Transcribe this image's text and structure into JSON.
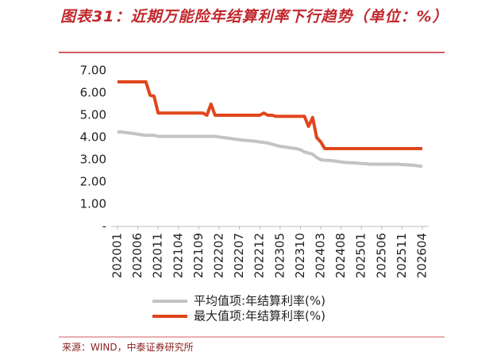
{
  "chart_data": {
    "type": "line",
    "title": "图表31：近期万能险年结算利率下行趋势（单位：%）",
    "source": "来源：WIND，中泰证券研究所",
    "categories": [
      "202001",
      null,
      null,
      null,
      null,
      "202006",
      null,
      null,
      null,
      null,
      "202011",
      null,
      null,
      null,
      null,
      "202104",
      null,
      null,
      null,
      null,
      "202109",
      null,
      null,
      null,
      null,
      "202202",
      null,
      null,
      null,
      null,
      "202207",
      null,
      null,
      null,
      null,
      "202212",
      null,
      null,
      null,
      null,
      "202305",
      null,
      null,
      null,
      null,
      "202310",
      null,
      null,
      null,
      null,
      "202403",
      null,
      null,
      null,
      null,
      "202408",
      null,
      null,
      null,
      null,
      "202501",
      null,
      null,
      null,
      null,
      "202506",
      null,
      null,
      null,
      null,
      "202511",
      null,
      null,
      null,
      null,
      "202604"
    ],
    "series": [
      {
        "name": "平均值项:年结算利率(%)",
        "color": "#c3c3c3",
        "values": [
          4.25,
          4.25,
          4.22,
          4.2,
          4.18,
          4.15,
          4.12,
          4.1,
          4.1,
          4.1,
          4.05,
          4.05,
          4.05,
          4.05,
          4.05,
          4.05,
          4.05,
          4.05,
          4.05,
          4.05,
          4.05,
          4.05,
          4.05,
          4.05,
          4.05,
          4.02,
          4.0,
          3.98,
          3.95,
          3.92,
          3.9,
          3.88,
          3.86,
          3.85,
          3.83,
          3.8,
          3.78,
          3.75,
          3.7,
          3.65,
          3.6,
          3.58,
          3.55,
          3.52,
          3.5,
          3.45,
          3.35,
          3.3,
          3.25,
          3.1,
          3.0,
          2.98,
          2.97,
          2.95,
          2.93,
          2.9,
          2.88,
          2.87,
          2.86,
          2.85,
          2.83,
          2.82,
          2.8,
          2.8,
          2.8,
          2.8,
          2.8,
          2.8,
          2.8,
          2.8,
          2.78,
          2.78,
          2.76,
          2.75,
          2.72,
          2.7
        ]
      },
      {
        "name": "最大值项:年结算利率(%)",
        "color": "#e0461c",
        "values": [
          6.5,
          6.5,
          6.5,
          6.5,
          6.5,
          6.5,
          6.5,
          6.5,
          5.9,
          5.85,
          5.1,
          5.1,
          5.1,
          5.1,
          5.1,
          5.1,
          5.1,
          5.1,
          5.1,
          5.1,
          5.1,
          5.1,
          5.0,
          5.5,
          5.0,
          5.0,
          5.0,
          5.0,
          5.0,
          5.0,
          5.0,
          5.0,
          5.0,
          5.0,
          5.0,
          5.0,
          5.1,
          5.0,
          5.0,
          4.95,
          4.95,
          4.95,
          4.95,
          4.95,
          4.95,
          4.95,
          4.95,
          4.5,
          4.9,
          4.0,
          3.8,
          3.5,
          3.5,
          3.5,
          3.5,
          3.5,
          3.5,
          3.5,
          3.5,
          3.5,
          3.5,
          3.5,
          3.5,
          3.5,
          3.5,
          3.5,
          3.5,
          3.5,
          3.5,
          3.5,
          3.5,
          3.5,
          3.5,
          3.5,
          3.5,
          3.5
        ]
      }
    ],
    "ylim": [
      0,
      7
    ],
    "yticks": [
      {
        "value": 0,
        "label": "-"
      },
      {
        "value": 1,
        "label": "1.00"
      },
      {
        "value": 2,
        "label": "2.00"
      },
      {
        "value": 3,
        "label": "3.00"
      },
      {
        "value": 4,
        "label": "4.00"
      },
      {
        "value": 5,
        "label": "5.00"
      },
      {
        "value": 6,
        "label": "6.00"
      },
      {
        "value": 7,
        "label": "7.00"
      }
    ],
    "grid": false,
    "legend": "bottom"
  }
}
